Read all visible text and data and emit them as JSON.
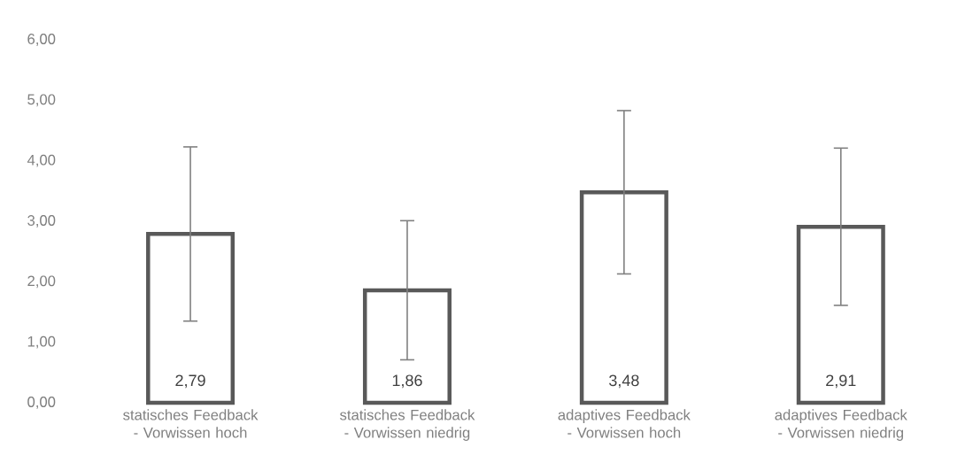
{
  "chart_data": {
    "type": "bar",
    "categories": [
      "statisches Feedback - Vorwissen hoch",
      "statisches Feedback - Vorwissen niedrig",
      "adaptives Feedback - Vorwissen hoch",
      "adaptives Feedback - Vorwissen niedrig"
    ],
    "values": [
      2.79,
      1.86,
      3.48,
      2.91
    ],
    "value_labels": [
      "2,79",
      "1,86",
      "3,48",
      "2,91"
    ],
    "errors": [
      1.44,
      1.15,
      1.35,
      1.3
    ],
    "color": "#595959",
    "ylim": [
      0,
      6
    ],
    "yticks": [
      {
        "value": 0,
        "label": "0,00"
      },
      {
        "value": 1,
        "label": "1,00"
      },
      {
        "value": 2,
        "label": "2,00"
      },
      {
        "value": 3,
        "label": "3,00"
      },
      {
        "value": 4,
        "label": "4,00"
      },
      {
        "value": 5,
        "label": "5,00"
      },
      {
        "value": 6,
        "label": "6,00"
      }
    ],
    "grid": false
  }
}
